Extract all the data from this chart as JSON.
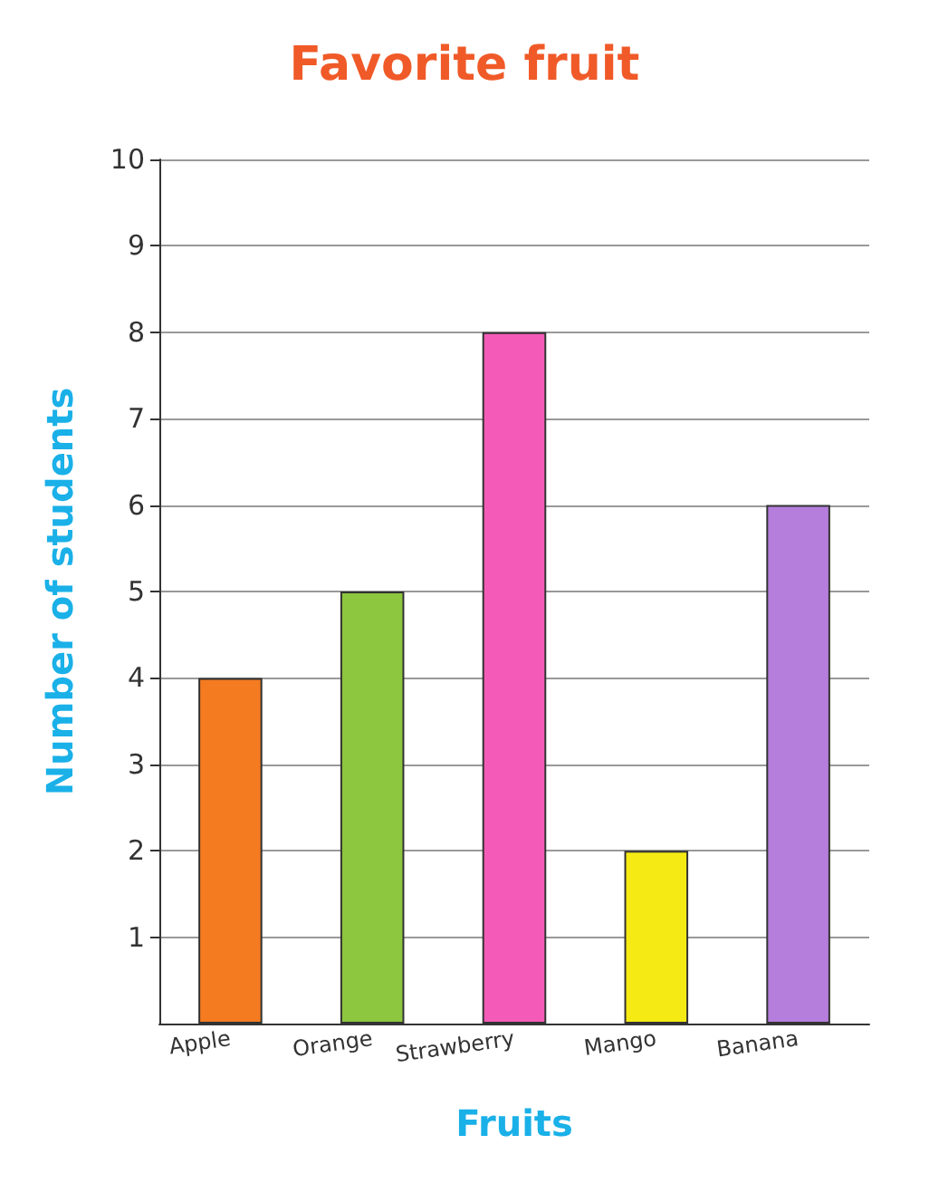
{
  "chart_data": {
    "type": "bar",
    "title": "Favorite fruit",
    "xlabel": "Fruits",
    "ylabel": "Number of students",
    "categories": [
      "Apple",
      "Orange",
      "Strawberry",
      "Mango",
      "Banana"
    ],
    "values": [
      4,
      5,
      8,
      2,
      6
    ],
    "colors": [
      "#f47b20",
      "#8dc63f",
      "#f45bb8",
      "#f5ea14",
      "#b57edc"
    ],
    "ylim": [
      0,
      10
    ],
    "yticks": [
      1,
      2,
      3,
      4,
      5,
      6,
      7,
      8,
      9,
      10
    ],
    "grid": "y"
  }
}
